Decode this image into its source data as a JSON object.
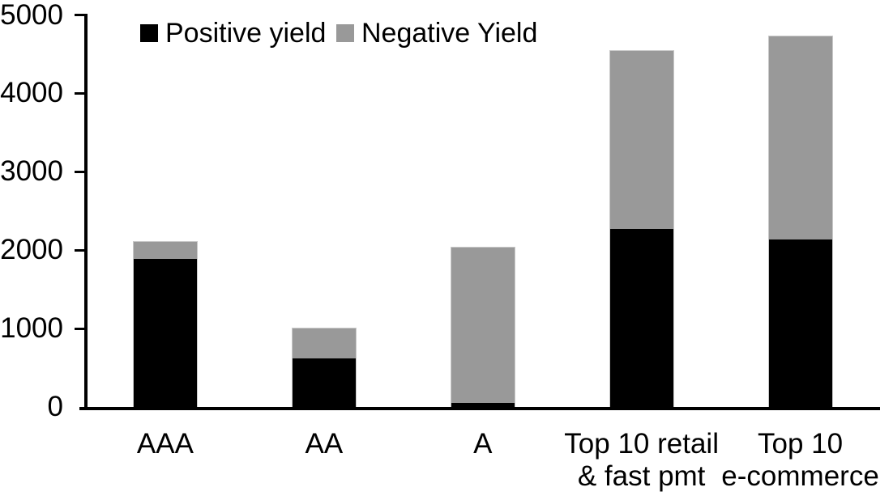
{
  "chart_data": {
    "type": "bar",
    "stacked": true,
    "title": "",
    "xlabel": "",
    "ylabel": "",
    "categories": [
      "AAA",
      "AA",
      "A",
      "Top 10 retail & fast pmt",
      "Top 10 e-commerce"
    ],
    "category_labels": [
      [
        "AAA"
      ],
      [
        "AA"
      ],
      [
        "A"
      ],
      [
        "Top 10 retail",
        "& fast pmt"
      ],
      [
        "Top 10",
        "e-commerce"
      ]
    ],
    "series": [
      {
        "name": "Positive yield",
        "color": "#000000",
        "values": [
          1890,
          620,
          50,
          2270,
          2140
        ]
      },
      {
        "name": "Negative Yield",
        "color": "#999999",
        "values": [
          220,
          380,
          1980,
          2270,
          2590
        ]
      }
    ],
    "totals": [
      2110,
      1000,
      2030,
      4540,
      4730
    ],
    "ylim": [
      0,
      5000
    ],
    "yticks": [
      0,
      1000,
      2000,
      3000,
      4000,
      5000
    ],
    "grid": false,
    "legend_position": "top-left",
    "axis_color": "#000000",
    "background_color": "#ffffff"
  }
}
